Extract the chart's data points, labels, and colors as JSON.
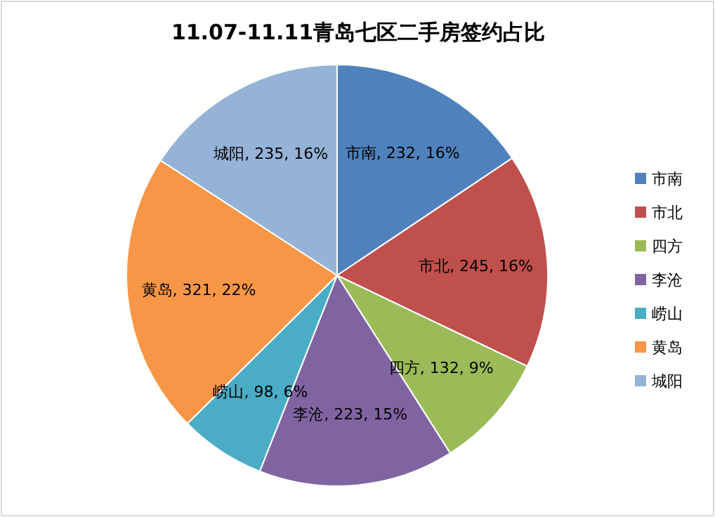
{
  "chart_data": {
    "type": "pie",
    "title": "11.07-11.11青岛七区二手房签约占比",
    "categories": [
      "市南",
      "市北",
      "四方",
      "李沧",
      "崂山",
      "黄岛",
      "城阳"
    ],
    "values": [
      232,
      245,
      132,
      223,
      98,
      321,
      235
    ],
    "colors": [
      "#4f81bd",
      "#c0504d",
      "#9bbb59",
      "#8064a2",
      "#4bacc6",
      "#f79646",
      "#95b3d7"
    ],
    "value_labels": [
      "市南, 232, 16%",
      "市北, 245, 16%",
      "四方, 132, 9%",
      "李沧, 223, 15%",
      "崂山, 98, 6%",
      "黄岛, 321, 22%",
      "城阳, 235, 16%"
    ],
    "legend": "right"
  }
}
